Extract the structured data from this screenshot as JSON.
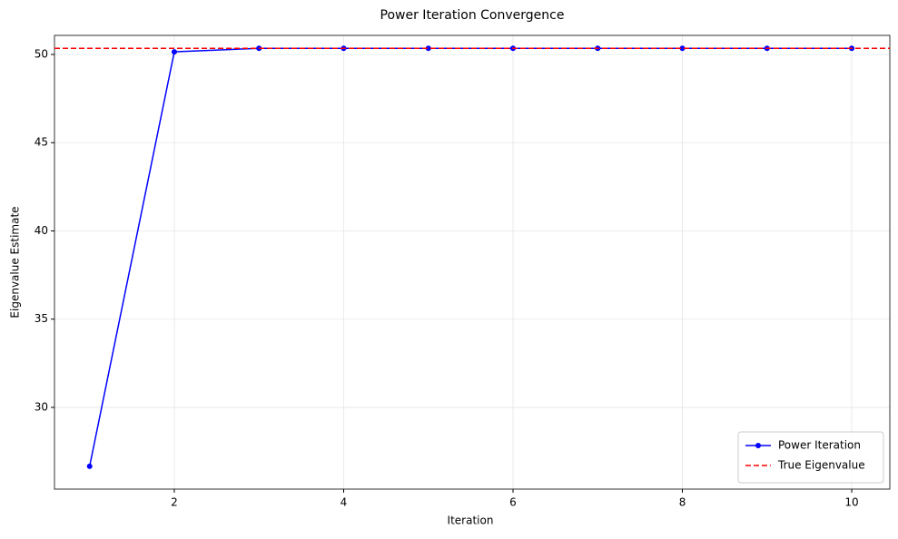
{
  "chart_data": {
    "type": "line",
    "title": "Power Iteration Convergence",
    "x_label": "Iteration",
    "y_label": "Eigenvalue Estimate",
    "x": [
      1,
      2,
      3,
      4,
      5,
      6,
      7,
      8,
      9,
      10
    ],
    "series": [
      {
        "name": "Power Iteration",
        "color": "#0000ff",
        "marker": "circle",
        "values": [
          26.66,
          50.15,
          50.35,
          50.35,
          50.35,
          50.35,
          50.35,
          50.35,
          50.35,
          50.35
        ]
      }
    ],
    "reference_lines": [
      {
        "name": "True Eigenvalue",
        "color": "#ff0000",
        "style": "dashed",
        "value": 50.35
      }
    ],
    "xlim": [
      0.585,
      10.45
    ],
    "ylim": [
      25.37,
      51.08
    ],
    "xticks": [
      2,
      4,
      6,
      8,
      10
    ],
    "yticks": [
      30,
      35,
      40,
      45,
      50
    ],
    "grid": true,
    "legend": "lower right"
  }
}
